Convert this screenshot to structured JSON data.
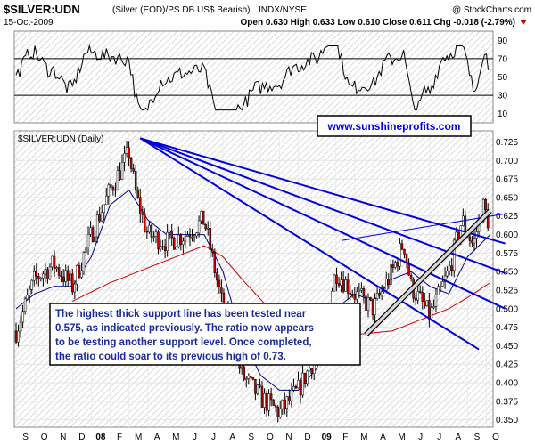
{
  "header": {
    "symbol": "$SILVER:UDN",
    "description": "(Silver (EOD)/PS DB US$ Bearish)",
    "exchange": "INDX/NYSE",
    "watermark": "@ StockCharts.com",
    "date": "15-Oct-2009",
    "ohlc": "Open 0.630  High 0.633  Low 0.610  Close 0.611  Chg -0.018 (-2.79%)"
  },
  "rsi_panel": {
    "ticks": [
      90,
      70,
      50,
      30,
      10
    ],
    "overbought": 70,
    "oversold": 30,
    "midline": 50,
    "ylim": [
      0,
      100
    ]
  },
  "main_panel": {
    "label": "$SILVER:UDN (Daily)",
    "website": "www.sunshineprofits.com",
    "annotation": "The highest thick support line has been tested near 0.575, as indicated previously. The ratio now appears to be testing another support level. Once completed, the ratio could soar to its previous high of 0.73."
  },
  "chart_data": {
    "type": "line",
    "title": "$SILVER:UDN",
    "xlabel": "",
    "ylabel": "",
    "ylim": [
      0.34,
      0.74
    ],
    "y_ticks": [
      0.725,
      0.7,
      0.675,
      0.65,
      0.625,
      0.6,
      0.575,
      0.55,
      0.525,
      0.5,
      0.475,
      0.45,
      0.425,
      0.4,
      0.375,
      0.35
    ],
    "x_ticks": [
      "S",
      "O",
      "N",
      "D",
      "08",
      "F",
      "M",
      "A",
      "M",
      "J",
      "J",
      "A",
      "S",
      "O",
      "N",
      "D",
      "09",
      "F",
      "M",
      "A",
      "M",
      "J",
      "J",
      "A",
      "S",
      "O"
    ],
    "price_keypoints": [
      {
        "m": 0,
        "v": 0.47
      },
      {
        "m": 1,
        "v": 0.54
      },
      {
        "m": 2,
        "v": 0.56
      },
      {
        "m": 3,
        "v": 0.53
      },
      {
        "m": 4,
        "v": 0.6
      },
      {
        "m": 5,
        "v": 0.66
      },
      {
        "m": 6,
        "v": 0.71
      },
      {
        "m": 6.4,
        "v": 0.65
      },
      {
        "m": 7,
        "v": 0.6
      },
      {
        "m": 8,
        "v": 0.59
      },
      {
        "m": 9,
        "v": 0.6
      },
      {
        "m": 10,
        "v": 0.62
      },
      {
        "m": 11,
        "v": 0.5
      },
      {
        "m": 12,
        "v": 0.41
      },
      {
        "m": 13,
        "v": 0.38
      },
      {
        "m": 14,
        "v": 0.36
      },
      {
        "m": 15,
        "v": 0.39
      },
      {
        "m": 16,
        "v": 0.44
      },
      {
        "m": 17,
        "v": 0.55
      },
      {
        "m": 18,
        "v": 0.52
      },
      {
        "m": 19,
        "v": 0.5
      },
      {
        "m": 20,
        "v": 0.55
      },
      {
        "m": 20.6,
        "v": 0.59
      },
      {
        "m": 21,
        "v": 0.53
      },
      {
        "m": 22,
        "v": 0.49
      },
      {
        "m": 23,
        "v": 0.55
      },
      {
        "m": 23.7,
        "v": 0.62
      },
      {
        "m": 24.3,
        "v": 0.585
      },
      {
        "m": 24.8,
        "v": 0.64
      },
      {
        "m": 25.2,
        "v": 0.611
      }
    ],
    "ma_short_keypoints": [
      {
        "m": 0,
        "v": 0.5
      },
      {
        "m": 1,
        "v": 0.52
      },
      {
        "m": 2,
        "v": 0.53
      },
      {
        "m": 3,
        "v": 0.53
      },
      {
        "m": 4,
        "v": 0.57
      },
      {
        "m": 5,
        "v": 0.64
      },
      {
        "m": 6,
        "v": 0.66
      },
      {
        "m": 7,
        "v": 0.62
      },
      {
        "m": 8,
        "v": 0.6
      },
      {
        "m": 9,
        "v": 0.6
      },
      {
        "m": 10,
        "v": 0.6
      },
      {
        "m": 11,
        "v": 0.55
      },
      {
        "m": 12,
        "v": 0.46
      },
      {
        "m": 13,
        "v": 0.41
      },
      {
        "m": 14,
        "v": 0.39
      },
      {
        "m": 15,
        "v": 0.39
      },
      {
        "m": 16,
        "v": 0.42
      },
      {
        "m": 17,
        "v": 0.5
      },
      {
        "m": 18,
        "v": 0.52
      },
      {
        "m": 19,
        "v": 0.51
      },
      {
        "m": 20,
        "v": 0.54
      },
      {
        "m": 21,
        "v": 0.55
      },
      {
        "m": 22,
        "v": 0.53
      },
      {
        "m": 23,
        "v": 0.52
      },
      {
        "m": 24,
        "v": 0.57
      },
      {
        "m": 25.2,
        "v": 0.6
      }
    ],
    "ma_long_keypoints": [
      {
        "m": 3,
        "v": 0.51
      },
      {
        "m": 5,
        "v": 0.535
      },
      {
        "m": 7,
        "v": 0.555
      },
      {
        "m": 9,
        "v": 0.575
      },
      {
        "m": 10,
        "v": 0.585
      },
      {
        "m": 11,
        "v": 0.57
      },
      {
        "m": 12,
        "v": 0.54
      },
      {
        "m": 14,
        "v": 0.485
      },
      {
        "m": 16,
        "v": 0.465
      },
      {
        "m": 18,
        "v": 0.465
      },
      {
        "m": 20,
        "v": 0.47
      },
      {
        "m": 21,
        "v": 0.48
      },
      {
        "m": 22,
        "v": 0.49
      },
      {
        "m": 23,
        "v": 0.5
      },
      {
        "m": 24,
        "v": 0.515
      },
      {
        "m": 25.2,
        "v": 0.535
      }
    ],
    "resistance_lines": [
      {
        "from": {
          "m": 6.6,
          "v": 0.73
        },
        "to": {
          "m": 26,
          "v": 0.588
        }
      },
      {
        "from": {
          "m": 6.6,
          "v": 0.73
        },
        "to": {
          "m": 26,
          "v": 0.548
        }
      },
      {
        "from": {
          "m": 6.6,
          "v": 0.73
        },
        "to": {
          "m": 26,
          "v": 0.5
        }
      },
      {
        "from": {
          "m": 6.6,
          "v": 0.73
        },
        "to": {
          "m": 24.6,
          "v": 0.445
        }
      }
    ],
    "support_lines": [
      {
        "from": {
          "m": 17.3,
          "v": 0.592
        },
        "to": {
          "m": 26,
          "v": 0.628
        }
      },
      {
        "from": {
          "m": 18.6,
          "v": 0.465
        },
        "to": {
          "m": 25.2,
          "v": 0.632
        }
      }
    ]
  }
}
